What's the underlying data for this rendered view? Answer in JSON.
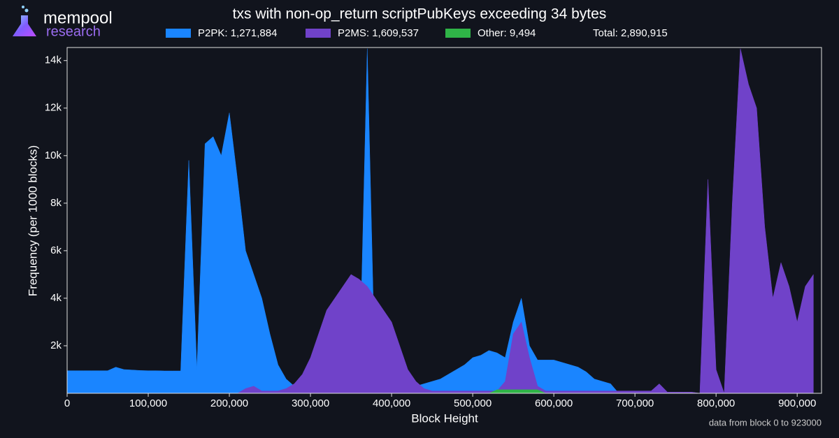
{
  "chart_data": {
    "type": "area",
    "title": "txs with non-op_return scriptPubKeys exceeding 34 bytes",
    "brand": {
      "name": "mempool",
      "sub": "research"
    },
    "total": "Total: 2,890,915",
    "note": "data from block 0 to 923000",
    "xlabel": "Block Height",
    "ylabel": "Frequency (per 1000 blocks)",
    "x": [
      0,
      10000,
      20000,
      30000,
      40000,
      50000,
      60000,
      70000,
      80000,
      90000,
      100000,
      110000,
      120000,
      130000,
      140000,
      150000,
      160000,
      170000,
      180000,
      190000,
      200000,
      210000,
      220000,
      230000,
      240000,
      250000,
      260000,
      270000,
      280000,
      290000,
      300000,
      310000,
      320000,
      330000,
      340000,
      350000,
      360000,
      370000,
      380000,
      390000,
      400000,
      410000,
      420000,
      430000,
      440000,
      450000,
      460000,
      470000,
      480000,
      490000,
      500000,
      510000,
      520000,
      530000,
      540000,
      550000,
      560000,
      570000,
      580000,
      590000,
      600000,
      610000,
      620000,
      630000,
      640000,
      650000,
      660000,
      670000,
      680000,
      690000,
      700000,
      710000,
      720000,
      730000,
      740000,
      750000,
      760000,
      770000,
      780000,
      790000,
      800000,
      810000,
      820000,
      830000,
      840000,
      850000,
      860000,
      870000,
      880000,
      890000,
      900000,
      910000,
      920000
    ],
    "series": [
      {
        "name": "P2PK: 1,271,884",
        "color": "#1a85ff",
        "values": [
          950,
          950,
          950,
          950,
          950,
          950,
          1100,
          1000,
          980,
          960,
          950,
          950,
          940,
          940,
          940,
          9800,
          1000,
          10500,
          10800,
          10000,
          11800,
          9000,
          6000,
          5000,
          4000,
          2500,
          1200,
          600,
          300,
          200,
          150,
          100,
          100,
          100,
          100,
          100,
          100,
          14500,
          100,
          100,
          100,
          150,
          200,
          300,
          400,
          500,
          600,
          800,
          1000,
          1200,
          1500,
          1600,
          1800,
          1700,
          1500,
          3000,
          4000,
          2000,
          1400,
          1400,
          1400,
          1300,
          1200,
          1100,
          900,
          600,
          500,
          400,
          0,
          0,
          0,
          0,
          0,
          0,
          0,
          0,
          0,
          0,
          0,
          0,
          0,
          0,
          0,
          0,
          0,
          0,
          0,
          0,
          0,
          0,
          0,
          0,
          0
        ]
      },
      {
        "name": "P2MS: 1,609,537",
        "color": "#7042c9",
        "values": [
          0,
          0,
          0,
          0,
          0,
          0,
          0,
          0,
          0,
          0,
          0,
          0,
          0,
          0,
          0,
          0,
          0,
          0,
          0,
          0,
          0,
          0,
          200,
          300,
          100,
          100,
          100,
          200,
          400,
          800,
          1500,
          2500,
          3500,
          4000,
          4500,
          5000,
          4800,
          4500,
          4000,
          3500,
          3000,
          2000,
          1000,
          500,
          200,
          100,
          100,
          100,
          100,
          100,
          100,
          100,
          100,
          100,
          500,
          2500,
          3000,
          1500,
          300,
          100,
          100,
          100,
          100,
          100,
          100,
          100,
          100,
          100,
          100,
          100,
          100,
          100,
          100,
          400,
          50,
          50,
          50,
          50,
          0,
          9000,
          1000,
          0,
          8000,
          14500,
          13000,
          12000,
          7000,
          4000,
          5500,
          4500,
          3000,
          4500,
          5000
        ]
      },
      {
        "name": "Other: 9,494",
        "color": "#2fb447",
        "values": [
          0,
          0,
          0,
          0,
          0,
          0,
          0,
          0,
          0,
          0,
          0,
          0,
          0,
          0,
          0,
          0,
          0,
          0,
          0,
          0,
          0,
          0,
          0,
          0,
          0,
          0,
          0,
          0,
          0,
          0,
          0,
          0,
          0,
          0,
          0,
          0,
          0,
          0,
          0,
          0,
          0,
          0,
          0,
          0,
          0,
          0,
          0,
          0,
          0,
          0,
          0,
          0,
          0,
          150,
          150,
          150,
          150,
          150,
          150,
          0,
          0,
          0,
          0,
          0,
          0,
          0,
          0,
          0,
          0,
          0,
          0,
          0,
          0,
          0,
          0,
          0,
          0,
          0,
          0,
          0,
          0,
          0,
          0,
          0,
          0,
          0,
          0,
          0,
          0,
          0,
          0,
          0,
          0
        ]
      }
    ],
    "xlim": [
      0,
      930000
    ],
    "xticks": [
      0,
      {
        "value": 100000,
        "label": "100,000"
      },
      {
        "value": 200000,
        "label": "200,000"
      },
      {
        "value": 300000,
        "label": "300,000"
      },
      {
        "value": 400000,
        "label": "400,000"
      },
      {
        "value": 500000,
        "label": "500,000"
      },
      {
        "value": 600000,
        "label": "600,000"
      },
      {
        "value": 700000,
        "label": "700,000"
      },
      {
        "value": 800000,
        "label": "800,000"
      },
      {
        "value": 900000,
        "label": "900,000"
      }
    ],
    "ylim": [
      0,
      14550
    ],
    "yticks": [
      {
        "value": 2000,
        "label": "2k"
      },
      {
        "value": 4000,
        "label": "4k"
      },
      {
        "value": 6000,
        "label": "6k"
      },
      {
        "value": 8000,
        "label": "8k"
      },
      {
        "value": 10000,
        "label": "10k"
      },
      {
        "value": 12000,
        "label": "12k"
      },
      {
        "value": 14000,
        "label": "14k"
      }
    ]
  }
}
